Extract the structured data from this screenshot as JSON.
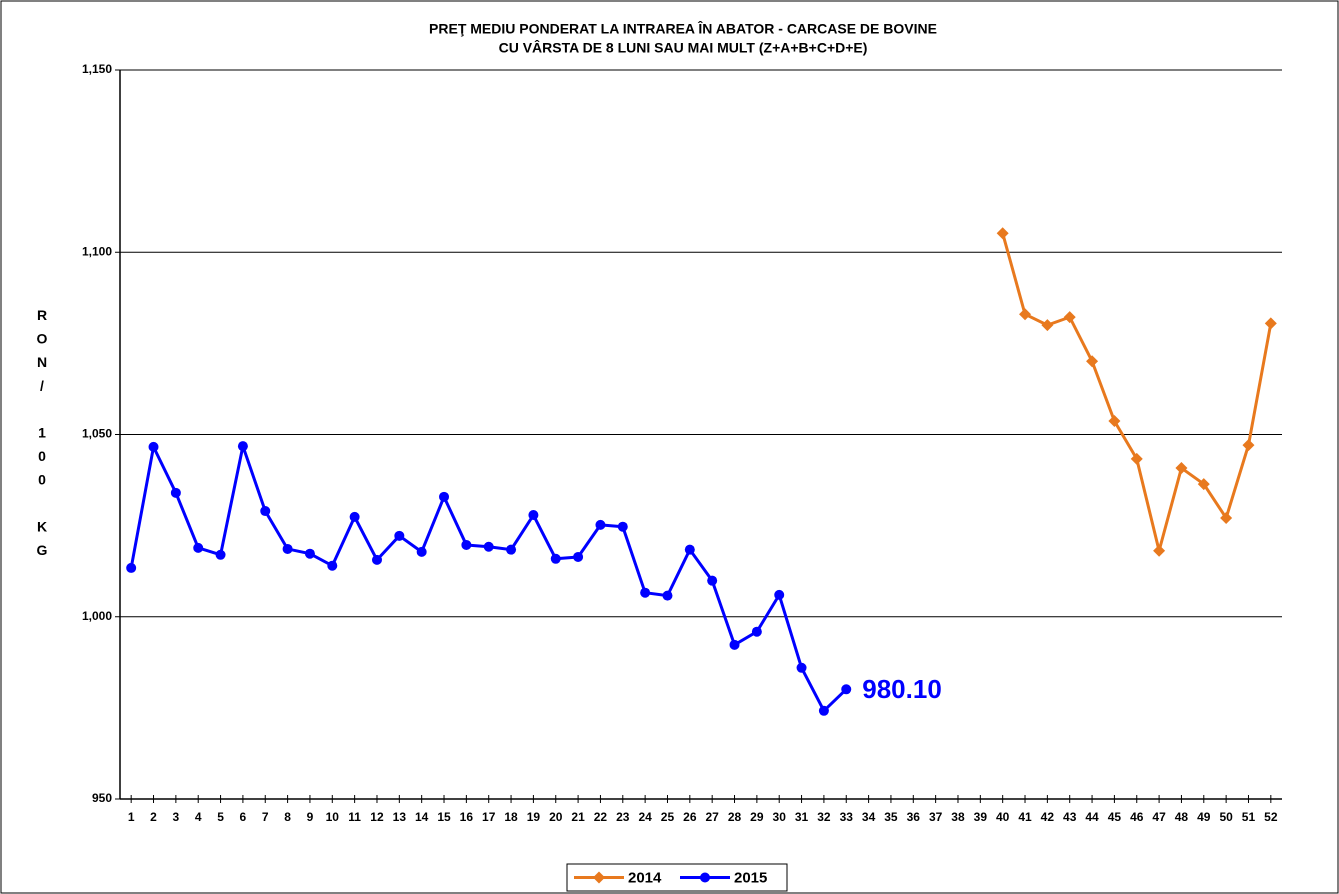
{
  "chart_data": {
    "type": "line",
    "title": [
      "PREŢ MEDIU PONDERAT LA INTRAREA ÎN ABATOR - CARCASE DE  BOVINE",
      "CU VÂRSTA DE 8 LUNI SAU MAI MULT (Z+A+B+C+D+E)"
    ],
    "y_label": "RON/ 100 KG",
    "categories": [
      "1",
      "2",
      "3",
      "4",
      "5",
      "6",
      "7",
      "8",
      "9",
      "10",
      "11",
      "12",
      "13",
      "14",
      "15",
      "16",
      "17",
      "18",
      "19",
      "20",
      "21",
      "22",
      "23",
      "24",
      "25",
      "26",
      "27",
      "28",
      "29",
      "30",
      "31",
      "32",
      "33",
      "34",
      "35",
      "36",
      "37",
      "38",
      "39",
      "40",
      "41",
      "42",
      "43",
      "44",
      "45",
      "46",
      "47",
      "48",
      "49",
      "50",
      "51",
      "52"
    ],
    "ylim": [
      950,
      1150
    ],
    "yticks": [
      950,
      {
        "value": 1000,
        "label": "1,000"
      },
      {
        "value": 1050,
        "label": "1,050"
      },
      {
        "value": 1100,
        "label": "1,100"
      },
      {
        "value": 1150,
        "label": "1,150"
      }
    ],
    "grid": true,
    "legend": "bottom",
    "series": [
      {
        "name": "2014",
        "color": "#E8791E",
        "marker": "diamond",
        "values": [
          null,
          null,
          null,
          null,
          null,
          null,
          null,
          null,
          null,
          null,
          null,
          null,
          null,
          null,
          null,
          null,
          null,
          null,
          null,
          null,
          null,
          null,
          null,
          null,
          null,
          null,
          null,
          null,
          null,
          null,
          null,
          null,
          null,
          null,
          null,
          null,
          null,
          null,
          null,
          1105.2,
          1083.0,
          1080.0,
          1082.2,
          1070.1,
          1053.7,
          1043.3,
          1018.1,
          1040.8,
          1036.4,
          1027.1,
          1047.1,
          1080.5
        ]
      },
      {
        "name": "2015",
        "color": "#0000FF",
        "marker": "circle",
        "values": [
          1013.4,
          1046.6,
          1034.0,
          1018.9,
          1017.0,
          1046.8,
          1029.0,
          1018.6,
          1017.3,
          1014.0,
          1027.4,
          1015.6,
          1022.2,
          1017.8,
          1032.9,
          1019.7,
          1019.2,
          1018.4,
          1027.9,
          1015.9,
          1016.4,
          1025.2,
          1024.7,
          1006.6,
          1005.8,
          1018.4,
          1009.9,
          992.3,
          995.9,
          1006.0,
          986.0,
          974.2,
          980.1,
          null,
          null,
          null,
          null,
          null,
          null,
          null,
          null,
          null,
          null,
          null,
          null,
          null,
          null,
          null,
          null,
          null,
          null,
          null
        ],
        "value_labels": [
          null,
          null,
          null,
          null,
          null,
          null,
          null,
          null,
          null,
          null,
          null,
          null,
          null,
          null,
          null,
          null,
          null,
          null,
          null,
          null,
          null,
          null,
          null,
          null,
          null,
          null,
          null,
          null,
          null,
          null,
          null,
          null,
          "980.10",
          null,
          null,
          null,
          null,
          null,
          null,
          null,
          null,
          null,
          null,
          null,
          null,
          null,
          null,
          null,
          null,
          null,
          null,
          null
        ]
      }
    ]
  }
}
